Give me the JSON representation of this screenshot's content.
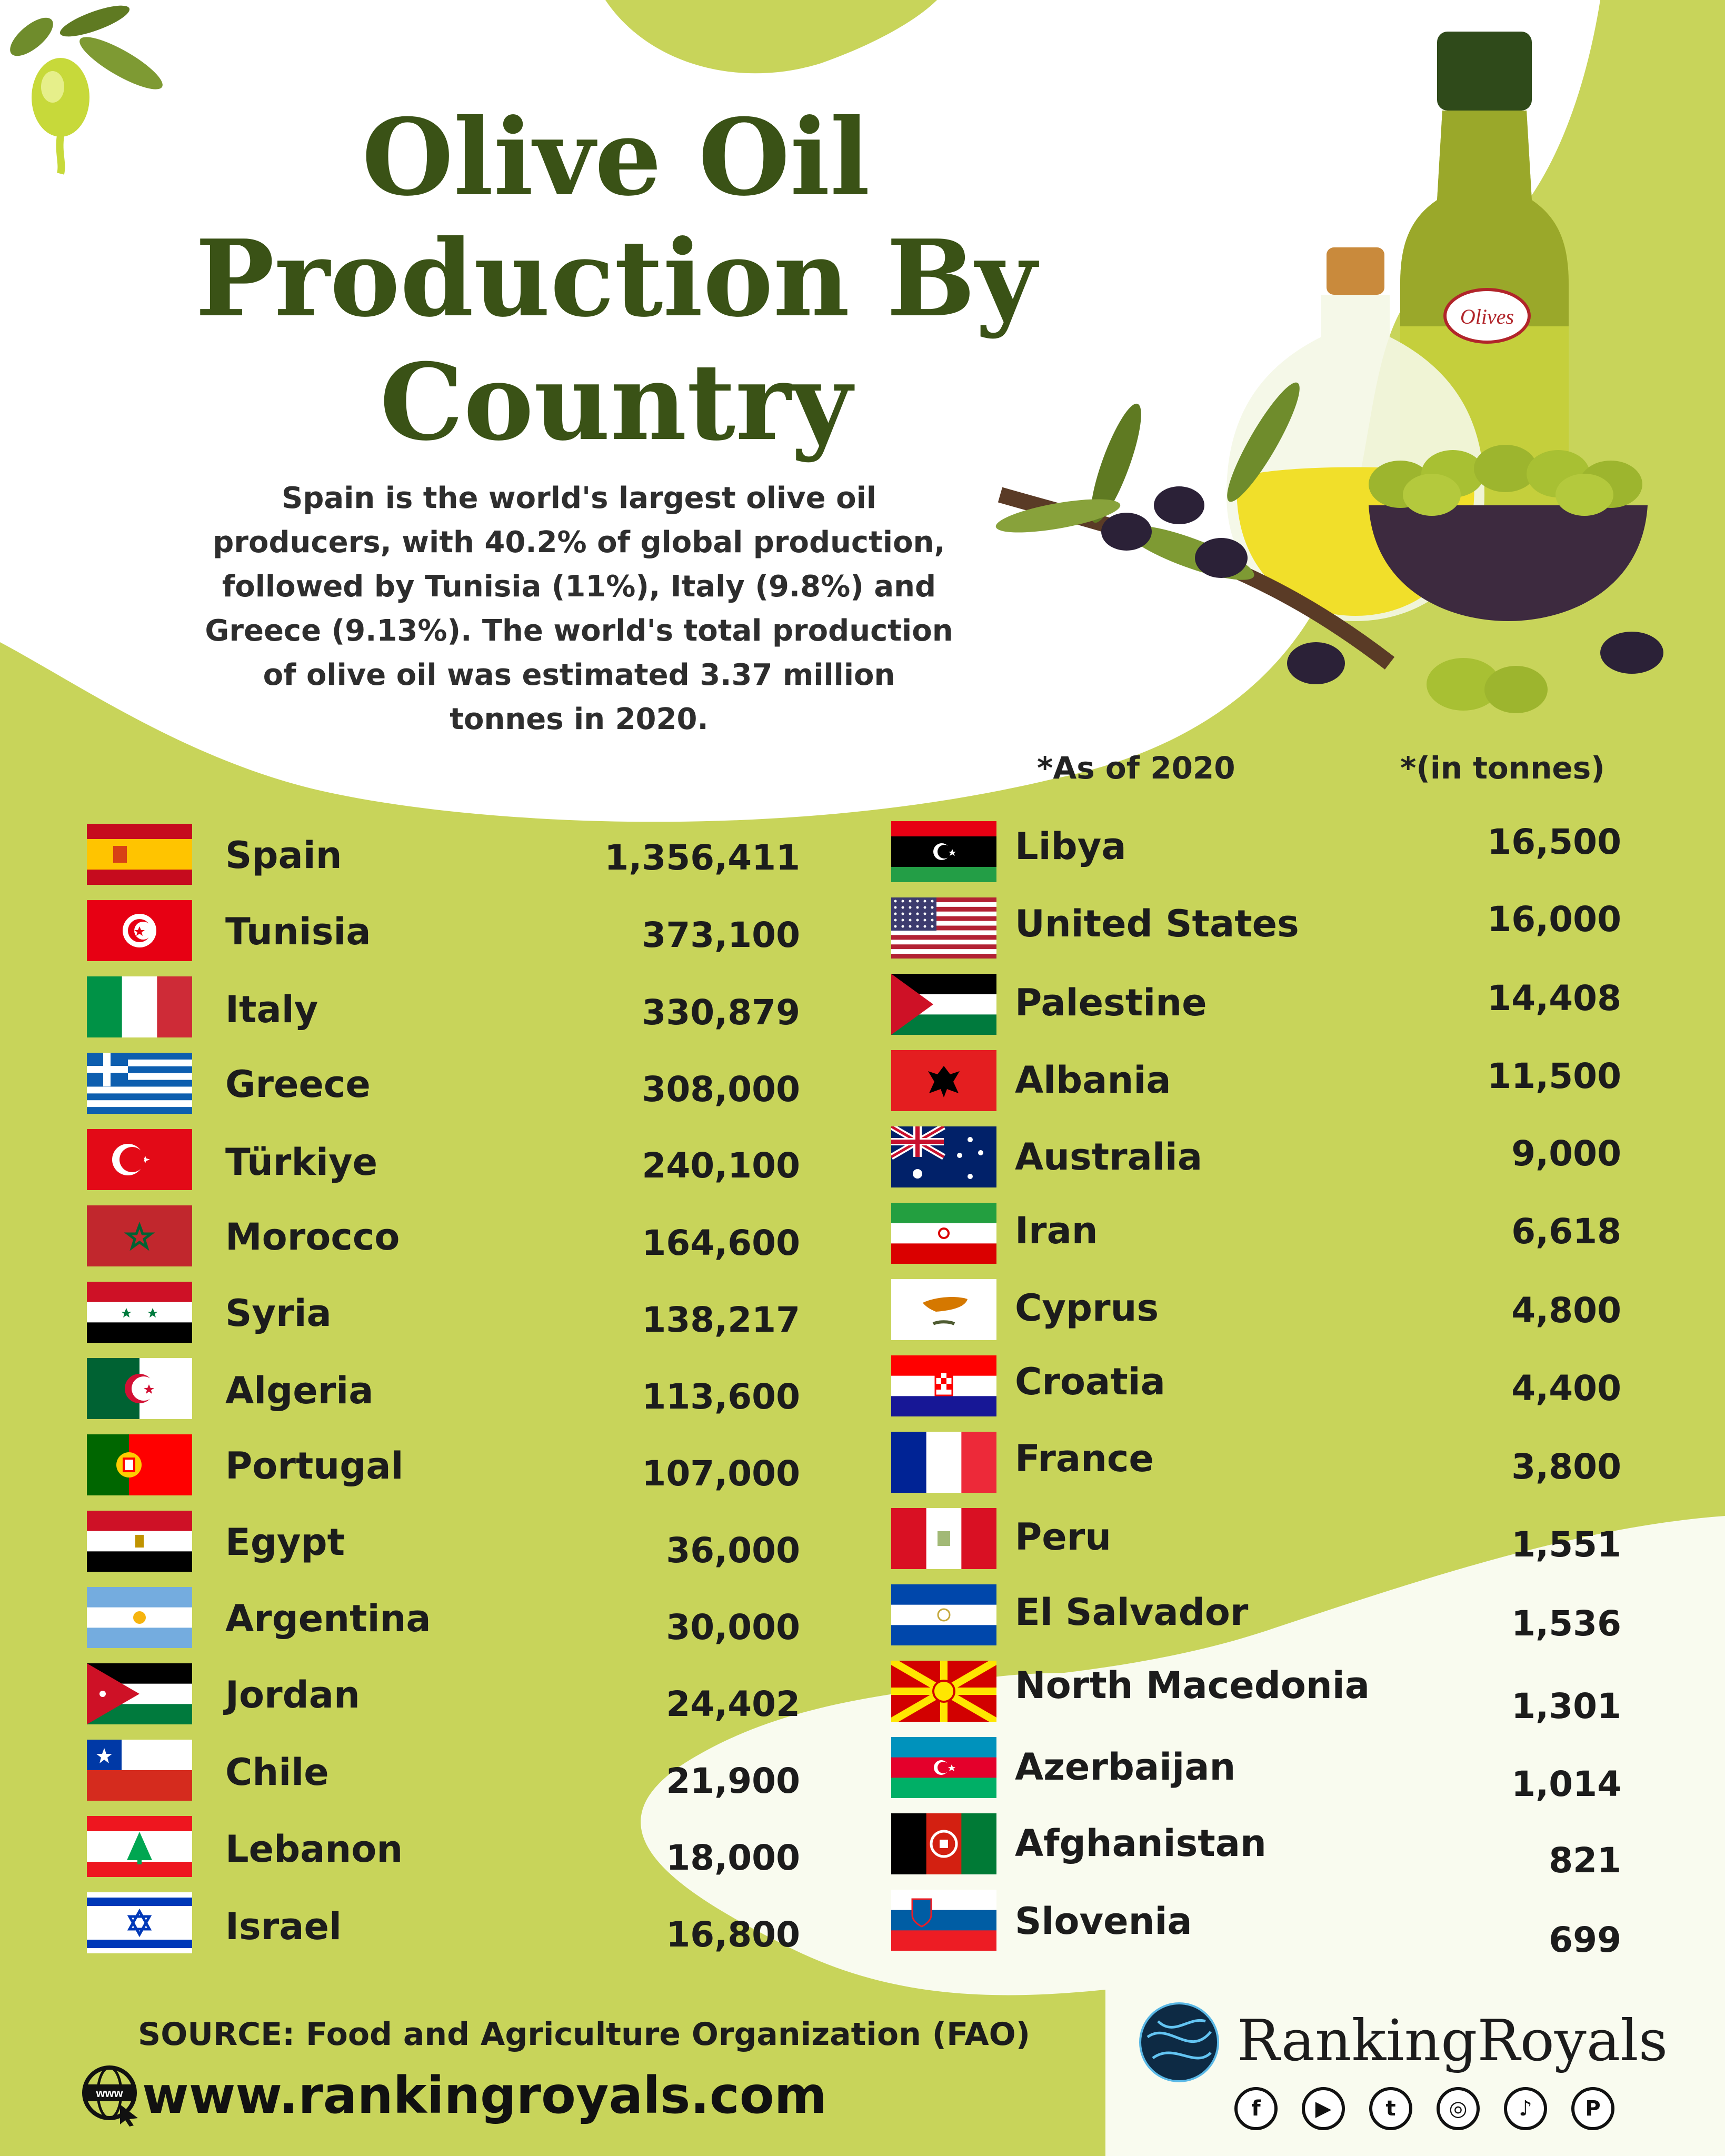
{
  "title": {
    "line1": "Olive Oil",
    "line2": "Production By",
    "line3": "Country"
  },
  "subtitle": [
    "Spain is the world's largest olive oil",
    "producers, with 40.2% of global production,",
    "followed by Tunisia (11%), Italy (9.8%) and",
    "Greece (9.13%). The world's total production",
    "of olive oil was estimated 3.37 million",
    "tonnes in 2020."
  ],
  "notes": {
    "as_of": "*As of 2020",
    "unit": "*(in tonnes)"
  },
  "bottle_label": "Olives",
  "left_column": [
    {
      "country": "Spain",
      "value": "1,356,411",
      "flag": "spain-flag-icon"
    },
    {
      "country": "Tunisia",
      "value": "373,100",
      "flag": "tunisia-flag-icon"
    },
    {
      "country": "Italy",
      "value": "330,879",
      "flag": "italy-flag-icon"
    },
    {
      "country": "Greece",
      "value": "308,000",
      "flag": "greece-flag-icon"
    },
    {
      "country": "Türkiye",
      "value": "240,100",
      "flag": "turkiye-flag-icon"
    },
    {
      "country": "Morocco",
      "value": "164,600",
      "flag": "morocco-flag-icon"
    },
    {
      "country": "Syria",
      "value": "138,217",
      "flag": "syria-flag-icon"
    },
    {
      "country": "Algeria",
      "value": "113,600",
      "flag": "algeria-flag-icon"
    },
    {
      "country": "Portugal",
      "value": "107,000",
      "flag": "portugal-flag-icon"
    },
    {
      "country": "Egypt",
      "value": "36,000",
      "flag": "egypt-flag-icon"
    },
    {
      "country": "Argentina",
      "value": "30,000",
      "flag": "argentina-flag-icon"
    },
    {
      "country": "Jordan",
      "value": "24,402",
      "flag": "jordan-flag-icon"
    },
    {
      "country": "Chile",
      "value": "21,900",
      "flag": "chile-flag-icon"
    },
    {
      "country": "Lebanon",
      "value": "18,000",
      "flag": "lebanon-flag-icon"
    },
    {
      "country": "Israel",
      "value": "16,800",
      "flag": "israel-flag-icon"
    }
  ],
  "right_column": [
    {
      "country": "Libya",
      "value": "16,500",
      "flag": "libya-flag-icon"
    },
    {
      "country": "United States",
      "value": "16,000",
      "flag": "united-states-flag-icon"
    },
    {
      "country": "Palestine",
      "value": "14,408",
      "flag": "palestine-flag-icon"
    },
    {
      "country": "Albania",
      "value": "11,500",
      "flag": "albania-flag-icon"
    },
    {
      "country": "Australia",
      "value": "9,000",
      "flag": "australia-flag-icon"
    },
    {
      "country": "Iran",
      "value": "6,618",
      "flag": "iran-flag-icon"
    },
    {
      "country": "Cyprus",
      "value": "4,800",
      "flag": "cyprus-flag-icon"
    },
    {
      "country": "Croatia",
      "value": "4,400",
      "flag": "croatia-flag-icon"
    },
    {
      "country": "France",
      "value": "3,800",
      "flag": "france-flag-icon"
    },
    {
      "country": "Peru",
      "value": "1,551",
      "flag": "peru-flag-icon"
    },
    {
      "country": "El Salvador",
      "value": "1,536",
      "flag": "el-salvador-flag-icon"
    },
    {
      "country": "North Macedonia",
      "value": "1,301",
      "flag": "north-macedonia-flag-icon"
    },
    {
      "country": "Azerbaijan",
      "value": "1,014",
      "flag": "azerbaijan-flag-icon"
    },
    {
      "country": "Afghanistan",
      "value": "821",
      "flag": "afghanistan-flag-icon"
    },
    {
      "country": "Slovenia",
      "value": "699",
      "flag": "slovenia-flag-icon"
    }
  ],
  "footer": {
    "source": "SOURCE: Food and Agriculture Organization (FAO)",
    "url": "www.rankingroyals.com",
    "globe_label": "www",
    "brand": "RankingRoyals",
    "social": [
      {
        "icon": "facebook-icon",
        "glyph": "f"
      },
      {
        "icon": "youtube-icon",
        "glyph": "▶"
      },
      {
        "icon": "twitter-icon",
        "glyph": "t"
      },
      {
        "icon": "instagram-icon",
        "glyph": "◎"
      },
      {
        "icon": "tiktok-icon",
        "glyph": "♪"
      },
      {
        "icon": "pinterest-icon",
        "glyph": "P"
      }
    ]
  },
  "colors": {
    "background": "#c8d45a",
    "panel": "#ffffff",
    "title": "#3a5216",
    "text": "#1c1c1c"
  }
}
